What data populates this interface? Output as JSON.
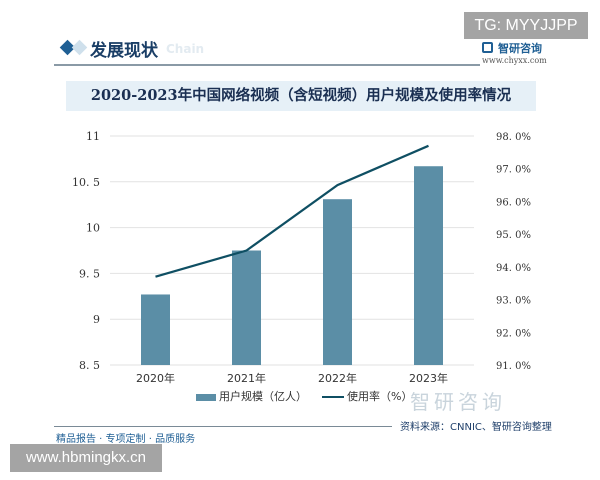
{
  "header": {
    "title": "发展现状",
    "ghost_text": "Chain"
  },
  "badges": {
    "top_right": "TG: MYYJJPP",
    "bottom_left": "www.hbmingkx.cn"
  },
  "brand": {
    "name": "智研咨询",
    "url": "www.chyxx.com",
    "watermark": "智研咨询"
  },
  "footer": {
    "tagline": "精品报告 · 专项定制 · 品质服务",
    "source": "资料来源：CNNIC、智研咨询整理"
  },
  "colors": {
    "bar": "#5b8ea6",
    "line": "#0f4f63",
    "title_bg": "#e6f0f7",
    "brand": "#1f5f94"
  },
  "chart_data": {
    "type": "bar",
    "title": "2020-2023年中国网络视频（含短视频）用户规模及使用率情况",
    "categories": [
      "2020年",
      "2021年",
      "2022年",
      "2023年"
    ],
    "series": [
      {
        "name": "用户规模（亿人）",
        "type": "bar",
        "axis": "left",
        "values": [
          9.27,
          9.75,
          10.31,
          10.67
        ]
      },
      {
        "name": "使用率（%）",
        "type": "line",
        "axis": "right",
        "values": [
          93.7,
          94.5,
          96.5,
          97.7
        ]
      }
    ],
    "left_axis": {
      "ylim": [
        8.5,
        11
      ],
      "ticks": [
        "8.5",
        "9",
        "9.5",
        "10",
        "10.5",
        "11"
      ]
    },
    "right_axis": {
      "ylim": [
        91,
        98
      ],
      "ticks": [
        "91.0%",
        "92.0%",
        "93.0%",
        "94.0%",
        "95.0%",
        "96.0%",
        "97.0%",
        "98.0%"
      ]
    },
    "xlabel": "",
    "ylabel": "",
    "grid": true,
    "legend_position": "bottom"
  }
}
